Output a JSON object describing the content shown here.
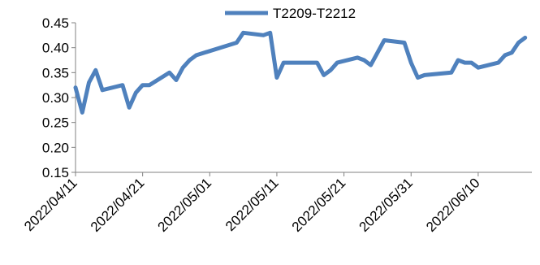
{
  "chart_data": {
    "type": "line",
    "xlabel": "",
    "ylabel": "",
    "ylim": [
      0.15,
      0.45
    ],
    "yticks": [
      "0.15",
      "0.20",
      "0.25",
      "0.30",
      "0.35",
      "0.40",
      "0.45"
    ],
    "xlim": [
      "2022-04-11",
      "2022-06-18"
    ],
    "xticks": [
      "2022/04/11",
      "2022/04/21",
      "2022/05/01",
      "2022/05/11",
      "2022/05/21",
      "2022/05/31",
      "2022/06/10"
    ],
    "grid": false,
    "legend": "top",
    "series": [
      {
        "name": "T2209-T2212",
        "color": "#4f81bd",
        "points": [
          [
            "2022-04-11",
            0.32
          ],
          [
            "2022-04-12",
            0.27
          ],
          [
            "2022-04-13",
            0.33
          ],
          [
            "2022-04-14",
            0.355
          ],
          [
            "2022-04-15",
            0.315
          ],
          [
            "2022-04-18",
            0.325
          ],
          [
            "2022-04-19",
            0.28
          ],
          [
            "2022-04-20",
            0.31
          ],
          [
            "2022-04-21",
            0.325
          ],
          [
            "2022-04-22",
            0.325
          ],
          [
            "2022-04-25",
            0.35
          ],
          [
            "2022-04-26",
            0.335
          ],
          [
            "2022-04-27",
            0.36
          ],
          [
            "2022-04-28",
            0.375
          ],
          [
            "2022-04-29",
            0.385
          ],
          [
            "2022-05-05",
            0.41
          ],
          [
            "2022-05-06",
            0.43
          ],
          [
            "2022-05-09",
            0.425
          ],
          [
            "2022-05-10",
            0.43
          ],
          [
            "2022-05-11",
            0.34
          ],
          [
            "2022-05-12",
            0.37
          ],
          [
            "2022-05-13",
            0.37
          ],
          [
            "2022-05-16",
            0.37
          ],
          [
            "2022-05-17",
            0.37
          ],
          [
            "2022-05-18",
            0.345
          ],
          [
            "2022-05-19",
            0.355
          ],
          [
            "2022-05-20",
            0.37
          ],
          [
            "2022-05-23",
            0.38
          ],
          [
            "2022-05-24",
            0.375
          ],
          [
            "2022-05-25",
            0.365
          ],
          [
            "2022-05-27",
            0.415
          ],
          [
            "2022-05-30",
            0.41
          ],
          [
            "2022-05-31",
            0.37
          ],
          [
            "2022-06-01",
            0.34
          ],
          [
            "2022-06-02",
            0.345
          ],
          [
            "2022-06-06",
            0.35
          ],
          [
            "2022-06-07",
            0.375
          ],
          [
            "2022-06-08",
            0.37
          ],
          [
            "2022-06-09",
            0.37
          ],
          [
            "2022-06-10",
            0.36
          ],
          [
            "2022-06-13",
            0.37
          ],
          [
            "2022-06-14",
            0.385
          ],
          [
            "2022-06-15",
            0.39
          ],
          [
            "2022-06-16",
            0.41
          ],
          [
            "2022-06-17",
            0.42
          ]
        ]
      }
    ]
  }
}
